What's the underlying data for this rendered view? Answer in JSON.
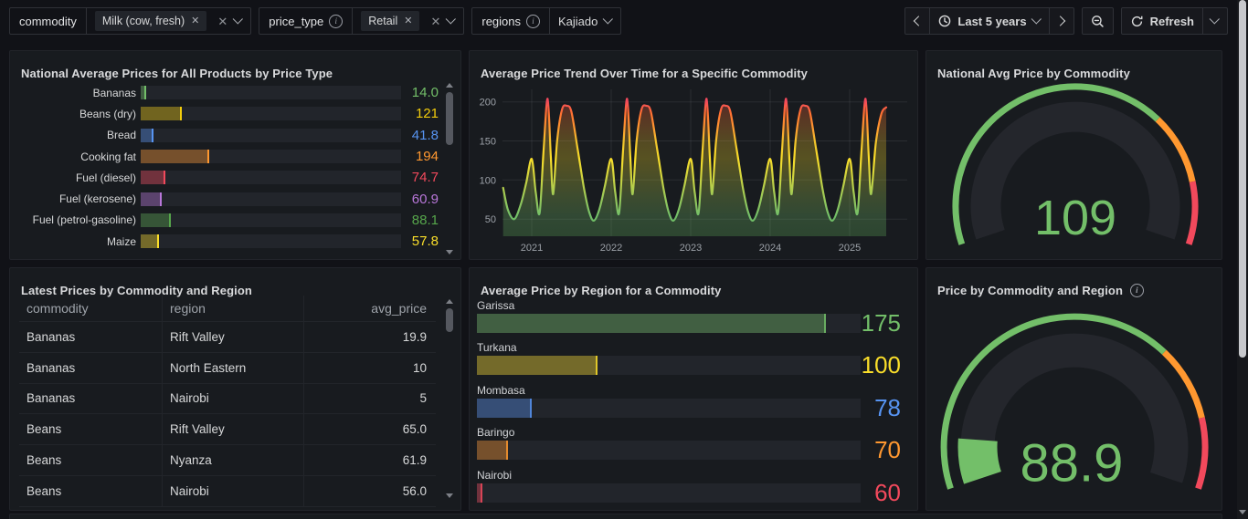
{
  "toolbar": {
    "variables": [
      {
        "label": "commodity",
        "has_info": false,
        "chips": [
          "Milk (cow, fresh)"
        ],
        "has_clear": true,
        "value": ""
      },
      {
        "label": "price_type",
        "has_info": true,
        "chips": [
          "Retail"
        ],
        "has_clear": true,
        "value": ""
      },
      {
        "label": "regions",
        "has_info": true,
        "chips": [],
        "has_clear": false,
        "value": "Kajiado"
      }
    ],
    "time_picker": {
      "range_label": "Last 5 years"
    },
    "refresh": {
      "label": "Refresh"
    }
  },
  "panels": {
    "bar_gauge_products": {
      "title": "National Average Prices for All Products by Price Type",
      "chart_data": {
        "type": "bar",
        "orientation": "horizontal",
        "categories": [
          "Bananas",
          "Beans (dry)",
          "Bread",
          "Cooking fat",
          "Fuel (diesel)",
          "Fuel (kerosene)",
          "Fuel (petrol-gasoline)",
          "Maize"
        ],
        "values": [
          14.0,
          121,
          41.8,
          194,
          74.7,
          60.9,
          88.1,
          57.8
        ],
        "display_values": [
          "14.0",
          "121",
          "41.8",
          "194",
          "74.7",
          "60.9",
          "88.1",
          "57.8"
        ],
        "colors": [
          "#73bf69",
          "#f2cc0c",
          "#5794f2",
          "#ff9830",
          "#f2495c",
          "#b877d9",
          "#56a64b",
          "#fade2a"
        ],
        "bar_pct": [
          1.5,
          15,
          4.2,
          25.7,
          8.7,
          7.3,
          10.8,
          6.3
        ],
        "scrollable": true
      }
    },
    "trend": {
      "title": "Average Price Trend Over Time for a Specific Commodity",
      "chart_data": {
        "type": "line",
        "xlabel": "",
        "ylabel": "",
        "x_ticks": [
          2021,
          2022,
          2023,
          2024,
          2025
        ],
        "y_ticks": [
          50,
          100,
          150,
          200
        ],
        "y_range": [
          28,
          216
        ],
        "x_range": [
          2020.64,
          2025.72
        ],
        "gradient_by_value": true,
        "grid": true,
        "points": [
          [
            2020.64,
            90
          ],
          [
            2020.7,
            62
          ],
          [
            2020.78,
            50
          ],
          [
            2020.86,
            68
          ],
          [
            2020.93,
            96
          ],
          [
            2021.0,
            127
          ],
          [
            2021.05,
            85
          ],
          [
            2021.1,
            58
          ],
          [
            2021.15,
            140
          ],
          [
            2021.2,
            204
          ],
          [
            2021.24,
            130
          ],
          [
            2021.27,
            82
          ],
          [
            2021.32,
            150
          ],
          [
            2021.38,
            190
          ],
          [
            2021.44,
            195
          ],
          [
            2021.5,
            187
          ],
          [
            2021.58,
            138
          ],
          [
            2021.66,
            88
          ],
          [
            2021.72,
            60
          ],
          [
            2021.78,
            48
          ],
          [
            2021.85,
            62
          ],
          [
            2021.92,
            92
          ],
          [
            2022.0,
            127
          ],
          [
            2022.05,
            85
          ],
          [
            2022.1,
            58
          ],
          [
            2022.15,
            140
          ],
          [
            2022.2,
            204
          ],
          [
            2022.24,
            130
          ],
          [
            2022.27,
            82
          ],
          [
            2022.32,
            150
          ],
          [
            2022.38,
            190
          ],
          [
            2022.44,
            195
          ],
          [
            2022.5,
            187
          ],
          [
            2022.58,
            138
          ],
          [
            2022.66,
            88
          ],
          [
            2022.72,
            60
          ],
          [
            2022.78,
            48
          ],
          [
            2022.85,
            62
          ],
          [
            2022.92,
            92
          ],
          [
            2023.0,
            127
          ],
          [
            2023.05,
            85
          ],
          [
            2023.1,
            58
          ],
          [
            2023.15,
            140
          ],
          [
            2023.2,
            204
          ],
          [
            2023.24,
            130
          ],
          [
            2023.27,
            82
          ],
          [
            2023.32,
            150
          ],
          [
            2023.38,
            190
          ],
          [
            2023.44,
            195
          ],
          [
            2023.5,
            187
          ],
          [
            2023.58,
            138
          ],
          [
            2023.66,
            88
          ],
          [
            2023.72,
            60
          ],
          [
            2023.78,
            48
          ],
          [
            2023.85,
            62
          ],
          [
            2023.92,
            92
          ],
          [
            2024.0,
            127
          ],
          [
            2024.05,
            85
          ],
          [
            2024.1,
            58
          ],
          [
            2024.15,
            140
          ],
          [
            2024.2,
            204
          ],
          [
            2024.24,
            130
          ],
          [
            2024.27,
            82
          ],
          [
            2024.32,
            150
          ],
          [
            2024.38,
            190
          ],
          [
            2024.44,
            195
          ],
          [
            2024.5,
            187
          ],
          [
            2024.58,
            138
          ],
          [
            2024.66,
            88
          ],
          [
            2024.72,
            60
          ],
          [
            2024.78,
            48
          ],
          [
            2024.85,
            62
          ],
          [
            2024.92,
            92
          ],
          [
            2025.0,
            127
          ],
          [
            2025.05,
            85
          ],
          [
            2025.1,
            58
          ],
          [
            2025.15,
            140
          ],
          [
            2025.2,
            204
          ],
          [
            2025.24,
            130
          ],
          [
            2025.27,
            82
          ],
          [
            2025.33,
            148
          ],
          [
            2025.4,
            185
          ],
          [
            2025.46,
            193
          ]
        ]
      }
    },
    "gauge_national": {
      "title": "National Avg Price by Commodity",
      "has_info": false,
      "chart_data": {
        "type": "gauge",
        "value": 109,
        "display_value": "109",
        "value_color": "#73bf69",
        "fill_fraction": 0,
        "thresholds": [
          {
            "from": 0,
            "to": 0.7,
            "color": "#73bf69"
          },
          {
            "from": 0.7,
            "to": 0.86,
            "color": "#ff9830"
          },
          {
            "from": 0.86,
            "to": 1,
            "color": "#f2495c"
          }
        ]
      }
    },
    "table_latest": {
      "title": "Latest Prices by Commodity and Region",
      "chart_data": {
        "type": "table",
        "columns": [
          "commodity",
          "region",
          "avg_price"
        ],
        "rows": [
          [
            "Bananas",
            "Rift Valley",
            "19.9"
          ],
          [
            "Bananas",
            "North Eastern",
            "10"
          ],
          [
            "Bananas",
            "Nairobi",
            "5"
          ],
          [
            "Beans",
            "Rift Valley",
            "65.0"
          ],
          [
            "Beans",
            "Nyanza",
            "61.9"
          ],
          [
            "Beans",
            "Nairobi",
            "56.0"
          ]
        ],
        "scrollable": true
      }
    },
    "bar_gauge_regions": {
      "title": "Average Price by Region for a Commodity",
      "chart_data": {
        "type": "bar",
        "orientation": "horizontal",
        "categories": [
          "Garissa",
          "Turkana",
          "Mombasa",
          "Baringo",
          "Nairobi"
        ],
        "values": [
          175,
          100,
          78,
          70,
          60
        ],
        "display_values": [
          "175",
          "100",
          "78",
          "70",
          "60"
        ],
        "colors": [
          "#73bf69",
          "#fade2a",
          "#5794f2",
          "#ff9830",
          "#f2495c"
        ],
        "bar_pct": [
          90.5,
          31,
          13.9,
          7.6,
          0.9
        ]
      }
    },
    "gauge_region": {
      "title": "Price by Commodity and Region",
      "has_info": true,
      "chart_data": {
        "type": "gauge",
        "value": 88.9,
        "display_value": "88.9",
        "value_color": "#73bf69",
        "fill_fraction": 0.105,
        "fill_color": "#73bf69",
        "thresholds": [
          {
            "from": 0,
            "to": 0.7,
            "color": "#73bf69"
          },
          {
            "from": 0.7,
            "to": 0.855,
            "color": "#ff9830"
          },
          {
            "from": 0.855,
            "to": 1,
            "color": "#f2495c"
          }
        ]
      }
    }
  },
  "colors": {
    "page_bg": "#111217",
    "panel_bg": "#181b1f",
    "track": "#22252b",
    "gauge_band": "#24262c",
    "green": "#73bf69",
    "yellow": "#fade2a",
    "blue": "#5794f2",
    "orange": "#ff9830",
    "red": "#f2495c",
    "purple": "#b877d9"
  }
}
